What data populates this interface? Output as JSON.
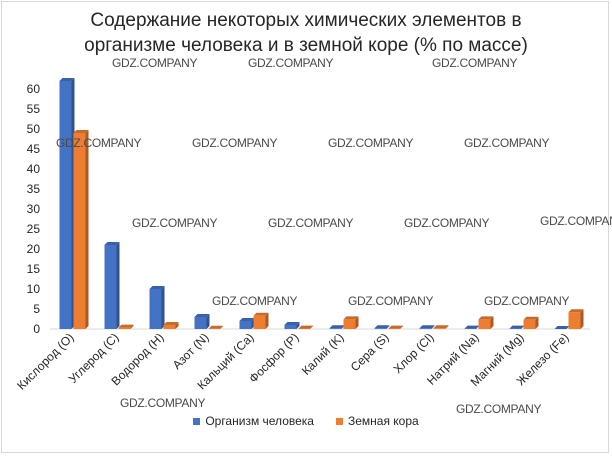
{
  "chart_data": {
    "type": "bar",
    "title_line1": "Содержание некоторых химических элементов в",
    "title_line2": "организме человека и в земной коре (% по массе)",
    "categories": [
      "Кислород (O)",
      "Углерод (C)",
      "Водород (H)",
      "Азот (N)",
      "Кальций (Ca)",
      "Фосфор (P)",
      "Калий (K)",
      "Сера (S)",
      "Хлор (Cl)",
      "Натрий (Na)",
      "Магний (Mg)",
      "Железо (Fe)"
    ],
    "series": [
      {
        "name": "Организм человека",
        "color": "#4472c4",
        "values": [
          62,
          21,
          10,
          3,
          2,
          1,
          0.2,
          0.2,
          0.2,
          0.1,
          0.1,
          0.01
        ]
      },
      {
        "name": "Земная кора",
        "color": "#ed7d31",
        "values": [
          49,
          0.35,
          1,
          0.05,
          3.3,
          0.1,
          2.4,
          0.1,
          0.2,
          2.4,
          2.3,
          4.2
        ]
      }
    ],
    "ylim": [
      0,
      60
    ],
    "yticks": [
      0,
      5,
      10,
      15,
      20,
      25,
      30,
      35,
      40,
      45,
      50,
      55,
      60
    ],
    "legend_position": "bottom",
    "grid": false
  },
  "watermark_text": "GDZ.COMPANY"
}
